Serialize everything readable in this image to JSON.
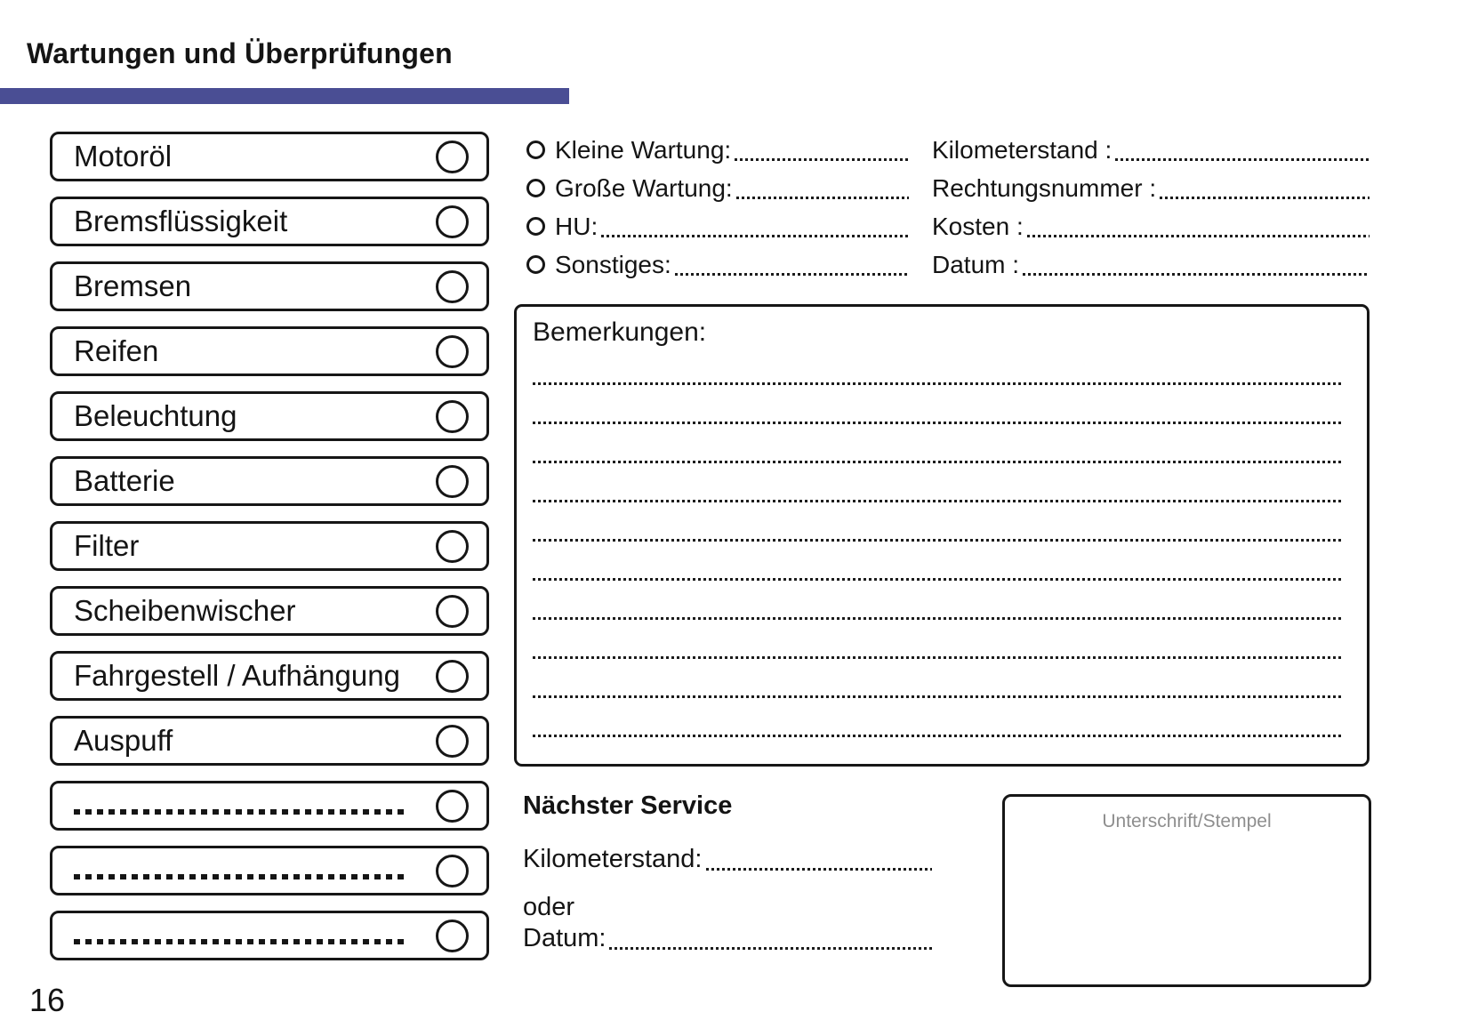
{
  "page": {
    "title": "Wartungen und Überprüfungen",
    "page_number": "16",
    "accent_color": "#4a4e94"
  },
  "checklist": {
    "items": [
      {
        "label": "Motoröl",
        "blank": false
      },
      {
        "label": "Bremsflüssigkeit",
        "blank": false
      },
      {
        "label": "Bremsen",
        "blank": false
      },
      {
        "label": "Reifen",
        "blank": false
      },
      {
        "label": "Beleuchtung",
        "blank": false
      },
      {
        "label": "Batterie",
        "blank": false
      },
      {
        "label": "Filter",
        "blank": false
      },
      {
        "label": "Scheibenwischer",
        "blank": false
      },
      {
        "label": "Fahrgestell / Aufhängung",
        "blank": false
      },
      {
        "label": "Auspuff",
        "blank": false
      },
      {
        "label": "",
        "blank": true
      },
      {
        "label": "",
        "blank": true
      },
      {
        "label": "",
        "blank": true
      }
    ]
  },
  "service_type": {
    "options": [
      {
        "label": "Kleine Wartung:"
      },
      {
        "label": "Große Wartung:"
      },
      {
        "label": "HU:"
      },
      {
        "label": "Sonstiges:"
      }
    ]
  },
  "service_details": {
    "fields": [
      {
        "label": "Kilometerstand :"
      },
      {
        "label": "Rechtungsnummer :"
      },
      {
        "label": "Kosten :"
      },
      {
        "label": "Datum :"
      }
    ]
  },
  "remarks": {
    "title": "Bemerkungen:",
    "line_count": 10
  },
  "next_service": {
    "title": "Nächster Service",
    "kilometers_label": "Kilometerstand:",
    "or_label": "oder",
    "date_label": "Datum:"
  },
  "signature": {
    "label": "Unterschrift/Stempel"
  }
}
